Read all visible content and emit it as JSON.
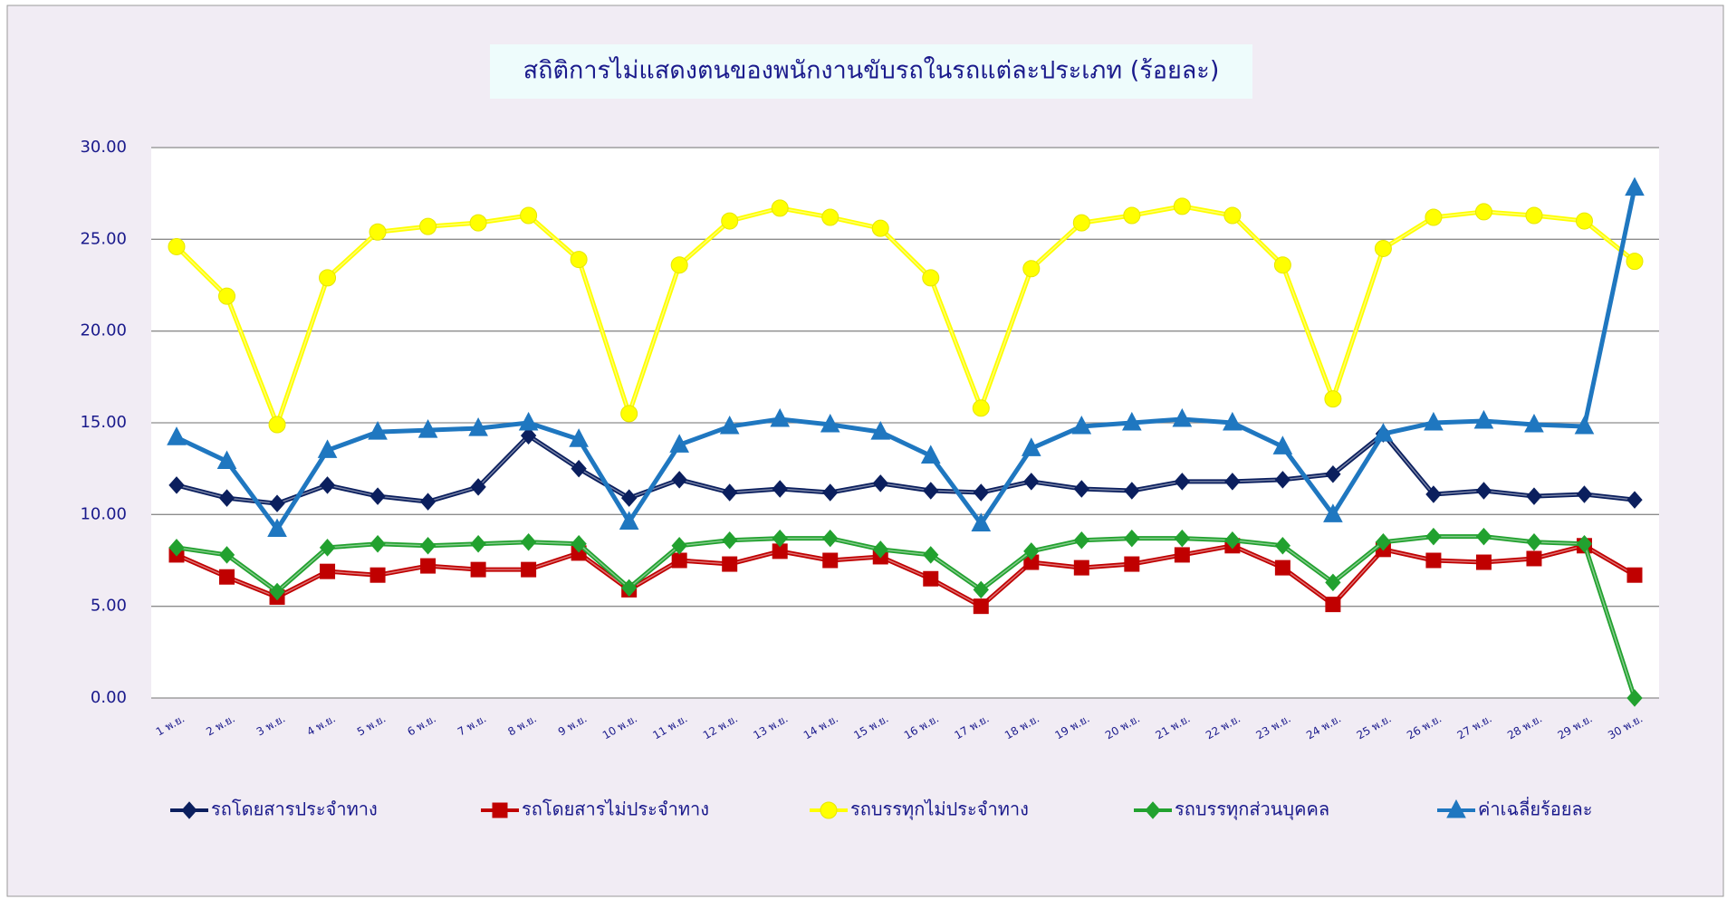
{
  "chart_data": {
    "type": "line",
    "title": "สถิติการไม่แสดงตนของพนักงานขับรถในรถแต่ละประเภท (ร้อยละ)",
    "categories": [
      "1 พ.ย.",
      "2 พ.ย.",
      "3 พ.ย.",
      "4 พ.ย.",
      "5 พ.ย.",
      "6 พ.ย.",
      "7 พ.ย.",
      "8 พ.ย.",
      "9 พ.ย.",
      "10 พ.ย.",
      "11 พ.ย.",
      "12 พ.ย.",
      "13 พ.ย.",
      "14 พ.ย.",
      "15 พ.ย.",
      "16 พ.ย.",
      "17 พ.ย.",
      "18 พ.ย.",
      "19 พ.ย.",
      "20 พ.ย.",
      "21 พ.ย.",
      "22 พ.ย.",
      "23 พ.ย.",
      "24 พ.ย.",
      "25 พ.ย.",
      "26 พ.ย.",
      "27 พ.ย.",
      "28 พ.ย.",
      "29 พ.ย.",
      "30 พ.ย."
    ],
    "series": [
      {
        "name": "รถโดยสารประจำทาง",
        "color": "#0b1f5e",
        "marker": "diamond",
        "values": [
          11.6,
          10.9,
          10.6,
          11.6,
          11.0,
          10.7,
          11.5,
          14.3,
          12.5,
          10.9,
          11.9,
          11.2,
          11.4,
          11.2,
          11.7,
          11.3,
          11.2,
          11.8,
          11.4,
          11.3,
          11.8,
          11.8,
          11.9,
          12.2,
          14.4,
          11.1,
          11.3,
          11.0,
          11.1,
          10.8
        ]
      },
      {
        "name": "รถโดยสารไม่ประจำทาง",
        "color": "#c00000",
        "marker": "square",
        "values": [
          7.8,
          6.6,
          5.5,
          6.9,
          6.7,
          7.2,
          7.0,
          7.0,
          7.9,
          5.9,
          7.5,
          7.3,
          8.0,
          7.5,
          7.7,
          6.5,
          5.0,
          7.4,
          7.1,
          7.3,
          7.8,
          8.3,
          7.1,
          5.1,
          8.1,
          7.5,
          7.4,
          7.6,
          8.3,
          6.7
        ]
      },
      {
        "name": "รถบรรทุกไม่ประจำทาง",
        "color": "#ffff00",
        "marker": "circle",
        "values": [
          24.6,
          21.9,
          14.9,
          22.9,
          25.4,
          25.7,
          25.9,
          26.3,
          23.9,
          15.5,
          23.6,
          26.0,
          26.7,
          26.2,
          25.6,
          22.9,
          15.8,
          23.4,
          25.9,
          26.3,
          26.8,
          26.3,
          23.6,
          16.3,
          24.5,
          26.2,
          26.5,
          26.3,
          26.0,
          23.8
        ]
      },
      {
        "name": "รถบรรทุกส่วนบุคคล",
        "color": "#22a12f",
        "marker": "diamond",
        "values": [
          8.2,
          7.8,
          5.8,
          8.2,
          8.4,
          8.3,
          8.4,
          8.5,
          8.4,
          6.0,
          8.3,
          8.6,
          8.7,
          8.7,
          8.1,
          7.8,
          5.9,
          8.0,
          8.6,
          8.7,
          8.7,
          8.6,
          8.3,
          6.3,
          8.5,
          8.8,
          8.8,
          8.5,
          8.4,
          0.0
        ]
      },
      {
        "name": "ค่าเฉลี่ยร้อยละ",
        "color": "#1f77c0",
        "marker": "triangle",
        "values": [
          14.2,
          12.9,
          9.2,
          13.5,
          14.5,
          14.6,
          14.7,
          15.0,
          14.1,
          9.6,
          13.8,
          14.8,
          15.2,
          14.9,
          14.5,
          13.2,
          9.5,
          13.6,
          14.8,
          15.0,
          15.2,
          15.0,
          13.7,
          10.0,
          14.4,
          15.0,
          15.1,
          14.9,
          14.8,
          27.8
        ]
      }
    ],
    "ylim": [
      0,
      30
    ],
    "yticks": [
      {
        "value": 0,
        "label": "0.00"
      },
      {
        "value": 5,
        "label": "5.00"
      },
      {
        "value": 10,
        "label": "10.00"
      },
      {
        "value": 15,
        "label": "15.00"
      },
      {
        "value": 20,
        "label": "20.00"
      },
      {
        "value": 25,
        "label": "25.00"
      },
      {
        "value": 30,
        "label": "30.00"
      }
    ],
    "grid": true,
    "legend": "bottom"
  }
}
